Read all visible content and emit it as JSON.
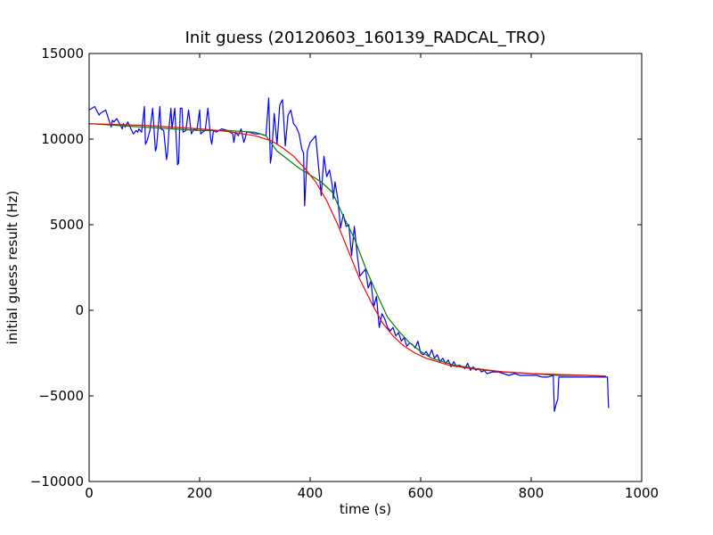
{
  "chart_data": {
    "type": "line",
    "title": "Init guess (20120603_160139_RADCAL_TRO)",
    "xlabel": "time (s)",
    "ylabel": "initial guess result (Hz)",
    "xlim": [
      0,
      1000
    ],
    "ylim": [
      -10000,
      15000
    ],
    "xticks": [
      0,
      200,
      400,
      600,
      800,
      1000
    ],
    "yticks": [
      -10000,
      -5000,
      0,
      5000,
      10000,
      15000
    ],
    "xtick_labels": [
      "0",
      "200",
      "400",
      "600",
      "800",
      "1000"
    ],
    "ytick_labels": [
      "−10000",
      "−5000",
      "0",
      "5000",
      "10000",
      "15000"
    ],
    "grid": false,
    "legend": "none",
    "series": [
      {
        "color": "#0000ff",
        "x": [
          0,
          10,
          18,
          20,
          30,
          40,
          42,
          45,
          50,
          60,
          62,
          65,
          70,
          80,
          85,
          88,
          90,
          95,
          100,
          102,
          105,
          110,
          115,
          120,
          122,
          125,
          128,
          130,
          135,
          140,
          142,
          145,
          148,
          150,
          155,
          160,
          162,
          165,
          168,
          170,
          175,
          180,
          185,
          190,
          195,
          200,
          202,
          205,
          210,
          215,
          220,
          222,
          225,
          230,
          240,
          250,
          260,
          262,
          265,
          270,
          275,
          280,
          282,
          285,
          290,
          300,
          310,
          320,
          325,
          328,
          330,
          335,
          340,
          345,
          350,
          355,
          360,
          365,
          370,
          375,
          380,
          385,
          388,
          390,
          395,
          400,
          410,
          420,
          425,
          430,
          435,
          440,
          442,
          445,
          450,
          455,
          460,
          465,
          470,
          475,
          480,
          485,
          490,
          495,
          500,
          505,
          510,
          515,
          520,
          525,
          530,
          535,
          540,
          545,
          550,
          555,
          560,
          565,
          570,
          575,
          580,
          585,
          590,
          595,
          600,
          605,
          610,
          615,
          620,
          625,
          630,
          635,
          640,
          645,
          650,
          655,
          660,
          665,
          670,
          675,
          680,
          685,
          690,
          695,
          700,
          705,
          710,
          715,
          720,
          730,
          740,
          750,
          760,
          770,
          780,
          790,
          800,
          810,
          820,
          830,
          840,
          842,
          845,
          848,
          850,
          860,
          870,
          880,
          890,
          900,
          910,
          920,
          930,
          938,
          940
        ],
        "y": [
          11700,
          11900,
          11400,
          11500,
          11700,
          10700,
          11100,
          11000,
          11200,
          10600,
          10900,
          10700,
          11000,
          10300,
          10500,
          10400,
          10600,
          10400,
          11900,
          9700,
          9900,
          10500,
          11800,
          9300,
          9500,
          10700,
          11900,
          10600,
          10500,
          8800,
          9200,
          10800,
          11800,
          10600,
          11800,
          8500,
          8600,
          11800,
          11800,
          10400,
          10500,
          11700,
          10300,
          10600,
          10500,
          11700,
          10300,
          10400,
          10500,
          11800,
          10000,
          9700,
          10500,
          10400,
          10600,
          10500,
          10300,
          9800,
          10400,
          10200,
          10600,
          9800,
          10000,
          10400,
          10400,
          10300,
          10300,
          10200,
          12400,
          8600,
          9000,
          11500,
          9700,
          12000,
          12300,
          9600,
          11400,
          11700,
          10900,
          10700,
          10300,
          9400,
          9200,
          6100,
          9300,
          9800,
          10200,
          6700,
          9000,
          7800,
          8200,
          7300,
          6500,
          7500,
          6500,
          4800,
          5600,
          4900,
          5000,
          3200,
          4900,
          3300,
          2000,
          2200,
          2400,
          1300,
          1700,
          200,
          800,
          -1000,
          -200,
          -500,
          -1000,
          -1200,
          -1000,
          -1500,
          -1300,
          -1800,
          -1600,
          -2100,
          -1900,
          -2000,
          -2200,
          -1800,
          -2500,
          -2600,
          -2400,
          -2700,
          -2300,
          -2800,
          -2600,
          -3000,
          -2800,
          -3100,
          -2900,
          -3300,
          -3000,
          -3300,
          -3200,
          -3300,
          -3400,
          -3100,
          -3500,
          -3300,
          -3500,
          -3400,
          -3600,
          -3500,
          -3700,
          -3600,
          -3600,
          -3700,
          -3800,
          -3700,
          -3800,
          -3800,
          -3800,
          -3800,
          -3900,
          -3900,
          -3800,
          -5900,
          -5500,
          -5200,
          -3900,
          -3900,
          -3900,
          -3900,
          -3900,
          -3900,
          -3900,
          -3900,
          -3900,
          -3900,
          -5700
        ]
      },
      {
        "color": "#008000",
        "x": [
          0,
          50,
          100,
          150,
          200,
          250,
          300,
          320,
          340,
          360,
          380,
          400,
          420,
          440,
          460,
          480,
          500,
          520,
          540,
          560,
          580,
          600,
          620,
          640,
          660,
          680,
          700,
          750,
          800,
          850,
          900,
          935
        ],
        "y": [
          10900,
          10800,
          10700,
          10600,
          10500,
          10500,
          10400,
          10200,
          9300,
          8800,
          8300,
          7900,
          7500,
          6900,
          5500,
          4200,
          2500,
          1000,
          -400,
          -1200,
          -1900,
          -2400,
          -2800,
          -3000,
          -3200,
          -3300,
          -3400,
          -3600,
          -3700,
          -3800,
          -3800,
          -3850
        ]
      },
      {
        "color": "#ff0000",
        "x": [
          0,
          50,
          100,
          150,
          200,
          250,
          300,
          330,
          350,
          370,
          390,
          410,
          430,
          450,
          470,
          490,
          510,
          530,
          550,
          570,
          590,
          610,
          630,
          650,
          670,
          700,
          750,
          800,
          850,
          900,
          935
        ],
        "y": [
          10900,
          10850,
          10800,
          10700,
          10600,
          10450,
          10200,
          9900,
          9500,
          9000,
          8300,
          7500,
          6400,
          5000,
          3400,
          1800,
          500,
          -700,
          -1500,
          -2100,
          -2500,
          -2800,
          -3000,
          -3200,
          -3300,
          -3450,
          -3600,
          -3700,
          -3750,
          -3800,
          -3850
        ]
      }
    ]
  }
}
